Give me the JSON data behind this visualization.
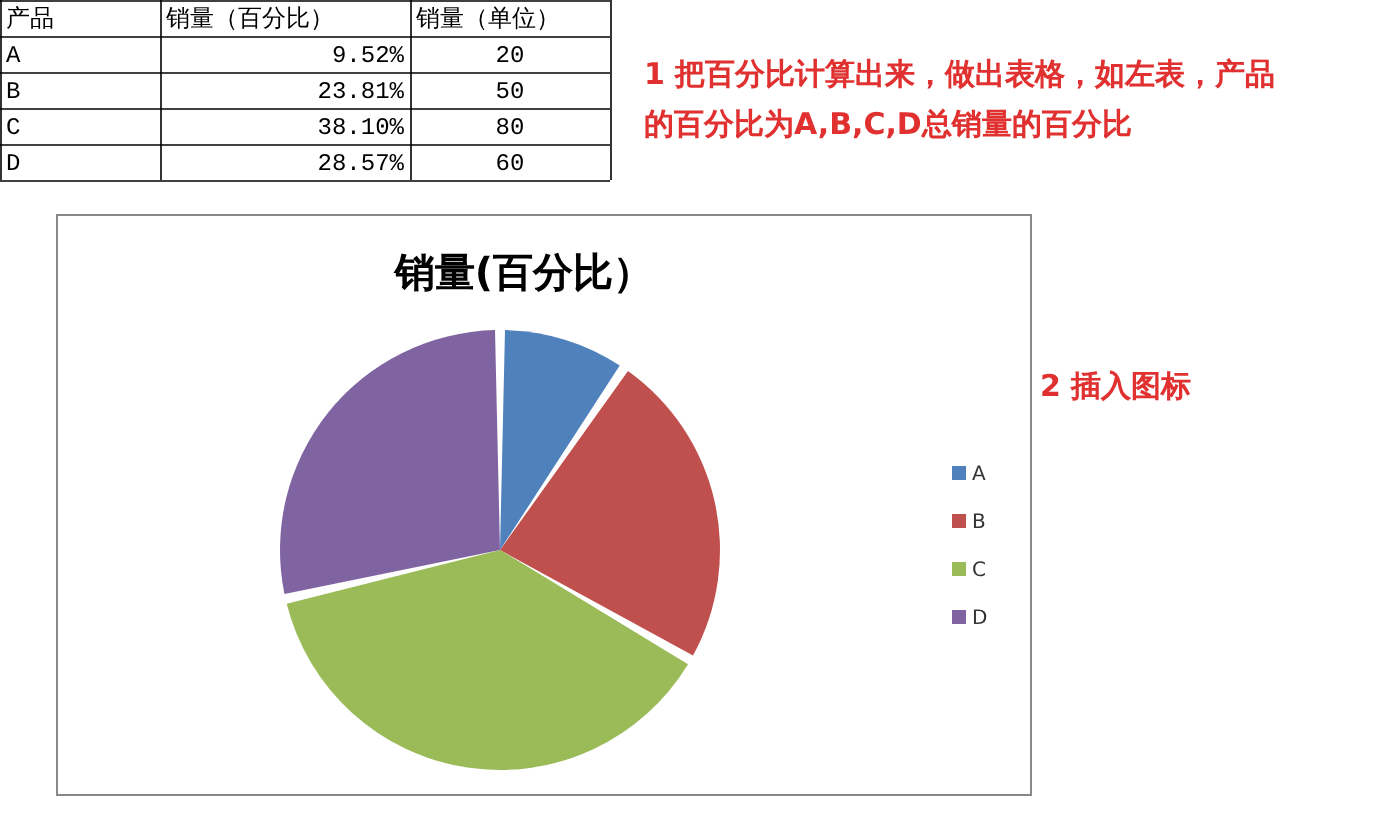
{
  "chart_data": {
    "type": "pie",
    "title": "销量(百分比）",
    "categories": [
      "A",
      "B",
      "C",
      "D"
    ],
    "values": [
      9.52,
      23.81,
      38.1,
      28.57
    ],
    "colors": [
      "#4f81bd",
      "#c0504d",
      "#9bbb59",
      "#8064a2"
    ],
    "legend": "right",
    "annotations": [
      "产品",
      "销量（百分比）",
      "销量（单位）",
      "20",
      "50",
      "80",
      "60",
      "1 把百分比计算出来，做出表格，如左表，产品的百分比为A,B,C,D总销量的百分比",
      "2 插入图标",
      "9.52%",
      "23.81%",
      "38.10%",
      "28.57%"
    ]
  }
}
